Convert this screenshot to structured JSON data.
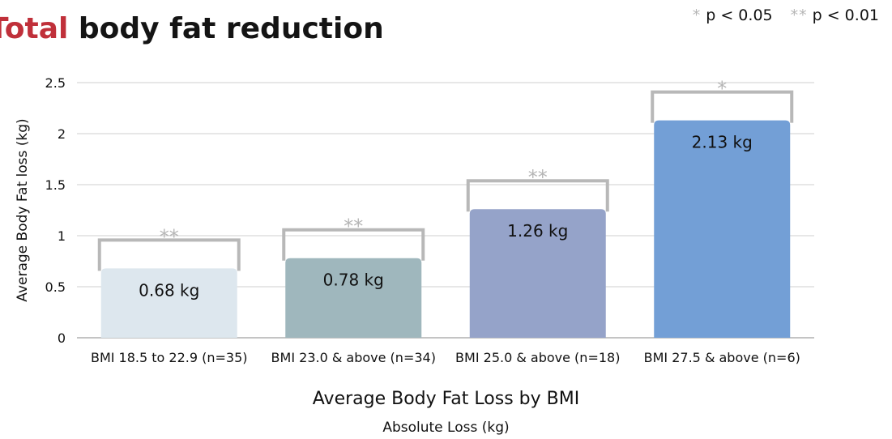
{
  "heading": {
    "accent": "Total",
    "rest": "body fat reduction"
  },
  "legend": [
    {
      "mark": "*",
      "label": "p < 0.05"
    },
    {
      "mark": "**",
      "label": "p < 0.01"
    }
  ],
  "chart_data": {
    "type": "bar",
    "categories": [
      "BMI 18.5 to 22.9 (n=35)",
      "BMI 23.0 & above (n=34)",
      "BMI 25.0 & above (n=18)",
      "BMI 27.5 & above (n=6)"
    ],
    "values": [
      0.68,
      0.78,
      1.26,
      2.13
    ],
    "value_labels": [
      "0.68 kg",
      "0.78 kg",
      "1.26 kg",
      "2.13 kg"
    ],
    "significance": [
      "**",
      "**",
      "**",
      "*"
    ],
    "colors": [
      "#dde7ee",
      "#9fb7bd",
      "#95a3c9",
      "#739fd6"
    ],
    "xlabel": "Average Body Fat Loss by BMI",
    "xsublabel": "Absolute Loss (kg)",
    "ylabel": "Average Body Fat loss (kg)",
    "ylim": [
      0,
      2.5
    ],
    "yticks": [
      "0",
      "0.5",
      "1",
      "1.5",
      "2",
      "2.5"
    ],
    "grid": true
  }
}
